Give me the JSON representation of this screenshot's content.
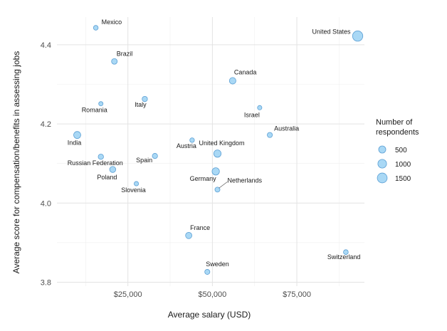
{
  "chart_data": {
    "type": "scatter",
    "xlabel": "Average salary (USD)",
    "ylabel": "Average score for compensation/benefits in assessing jobs",
    "xlim": [
      4000,
      95000
    ],
    "ylim": [
      3.79,
      4.47
    ],
    "x_ticks": [
      25000,
      50000,
      75000
    ],
    "x_tick_labels": [
      "$25,000",
      "$50,000",
      "$75,000"
    ],
    "y_ticks": [
      3.8,
      4.0,
      4.2,
      4.4
    ],
    "y_tick_labels": [
      "3.8",
      "4.0",
      "4.2",
      "4.4"
    ],
    "grid": true,
    "point_color": "#a9d8f5",
    "point_stroke": "#5b9fd4",
    "legend": {
      "title_line1": "Number of",
      "title_line2": "respondents",
      "placement": "right",
      "entries": [
        {
          "label": "500",
          "value": 500
        },
        {
          "label": "1000",
          "value": 1000
        },
        {
          "label": "1500",
          "value": 1500
        }
      ]
    },
    "points": [
      {
        "label": "Mexico",
        "x": 15500,
        "y": 4.443,
        "n": 60
      },
      {
        "label": "Brazil",
        "x": 21000,
        "y": 4.358,
        "n": 190
      },
      {
        "label": "United States",
        "x": 93000,
        "y": 4.422,
        "n": 1700
      },
      {
        "label": "Canada",
        "x": 56000,
        "y": 4.309,
        "n": 350
      },
      {
        "label": "Romania",
        "x": 17000,
        "y": 4.251,
        "n": 30
      },
      {
        "label": "Italy",
        "x": 30000,
        "y": 4.263,
        "n": 130
      },
      {
        "label": "Israel",
        "x": 64000,
        "y": 4.241,
        "n": 35
      },
      {
        "label": "Australia",
        "x": 67000,
        "y": 4.172,
        "n": 110
      },
      {
        "label": "India",
        "x": 10000,
        "y": 4.172,
        "n": 480
      },
      {
        "label": "Russian Federation",
        "x": 17000,
        "y": 4.117,
        "n": 130
      },
      {
        "label": "Spain",
        "x": 33000,
        "y": 4.119,
        "n": 120
      },
      {
        "label": "Austria",
        "x": 44000,
        "y": 4.159,
        "n": 50
      },
      {
        "label": "United Kingdom",
        "x": 51500,
        "y": 4.125,
        "n": 550
      },
      {
        "label": "Poland",
        "x": 20500,
        "y": 4.085,
        "n": 260
      },
      {
        "label": "Germany",
        "x": 51000,
        "y": 4.08,
        "n": 560
      },
      {
        "label": "Slovenia",
        "x": 27500,
        "y": 4.049,
        "n": 35
      },
      {
        "label": "Netherlands",
        "x": 51500,
        "y": 4.034,
        "n": 90
      },
      {
        "label": "France",
        "x": 43000,
        "y": 3.918,
        "n": 300
      },
      {
        "label": "Switzerland",
        "x": 89500,
        "y": 3.876,
        "n": 70
      },
      {
        "label": "Sweden",
        "x": 48500,
        "y": 3.826,
        "n": 100
      }
    ]
  }
}
